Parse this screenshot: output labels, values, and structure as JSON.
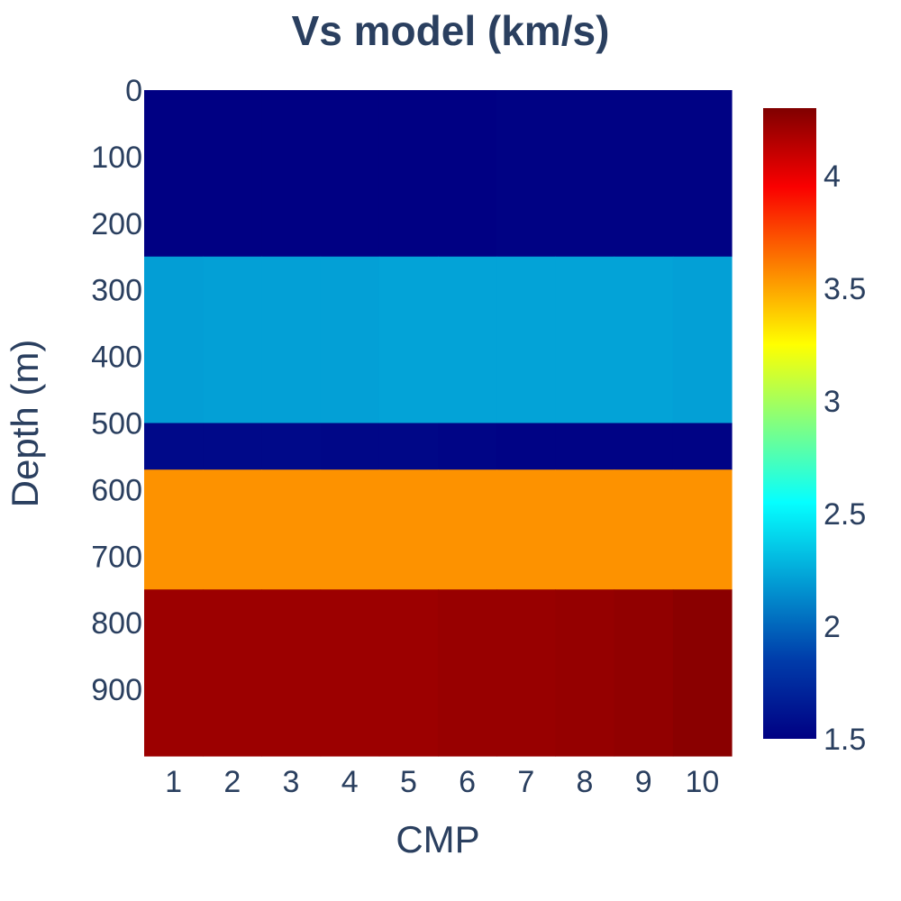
{
  "chart_data": {
    "type": "heatmap",
    "title": "Vs model (km/s)",
    "xlabel": "CMP",
    "ylabel": "Depth (m)",
    "x": [
      1,
      2,
      3,
      4,
      5,
      6,
      7,
      8,
      9,
      10
    ],
    "x_tick_labels": [
      "1",
      "2",
      "3",
      "4",
      "5",
      "6",
      "7",
      "8",
      "9",
      "10"
    ],
    "y_tick_values": [
      0,
      100,
      200,
      300,
      400,
      500,
      600,
      700,
      800,
      900
    ],
    "y_tick_labels": [
      "0",
      "100",
      "200",
      "300",
      "400",
      "500",
      "600",
      "700",
      "800",
      "900"
    ],
    "y_range": [
      0,
      1000
    ],
    "y_reversed": true,
    "colorscale": "Jet",
    "colorbar": {
      "range": [
        1.5,
        4.3
      ],
      "tick_values": [
        1.5,
        2,
        2.5,
        3,
        3.5,
        4
      ],
      "tick_labels": [
        "1.5",
        "2",
        "2.5",
        "3",
        "3.5",
        "4"
      ]
    },
    "layers": [
      {
        "depth_top": 0,
        "depth_bottom": 250,
        "vs": [
          1.5,
          1.5,
          1.5,
          1.5,
          1.5,
          1.5,
          1.51,
          1.51,
          1.51,
          1.51
        ]
      },
      {
        "depth_top": 250,
        "depth_bottom": 500,
        "vs": [
          2.2,
          2.21,
          2.21,
          2.21,
          2.22,
          2.22,
          2.22,
          2.22,
          2.22,
          2.21
        ]
      },
      {
        "depth_top": 500,
        "depth_bottom": 570,
        "vs": [
          1.55,
          1.55,
          1.55,
          1.54,
          1.54,
          1.53,
          1.52,
          1.52,
          1.52,
          1.52
        ]
      },
      {
        "depth_top": 570,
        "depth_bottom": 750,
        "vs": [
          3.55,
          3.55,
          3.55,
          3.55,
          3.55,
          3.55,
          3.55,
          3.55,
          3.55,
          3.55
        ]
      },
      {
        "depth_top": 750,
        "depth_bottom": 1000,
        "vs": [
          4.22,
          4.22,
          4.22,
          4.22,
          4.22,
          4.23,
          4.23,
          4.24,
          4.25,
          4.27
        ]
      }
    ]
  }
}
